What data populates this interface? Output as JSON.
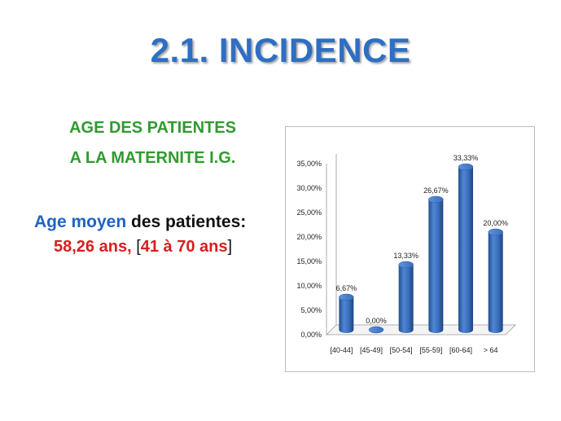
{
  "slide": {
    "title": "2.1. INCIDENCE",
    "subtitle_line1": "AGE DES PATIENTES",
    "subtitle_line2": "A LA MATERNITE I.G.",
    "mean_label_a": "Age moyen",
    "mean_label_b": " des patientes:",
    "mean_value": "58,26 ans,",
    "range_open": "[",
    "range_value": "41 à 70 ans",
    "range_close": "]",
    "colors": {
      "title": "#2e6fc4",
      "subtitle": "#2f9b2f",
      "highlight": "#d81e1e",
      "keyword": "#1f63c0",
      "bar": "#3a6fbf"
    }
  },
  "chart_data": {
    "type": "bar",
    "categories": [
      "[40-44]",
      "[45-49]",
      "[50-54]",
      "[55-59]",
      "[60-64]",
      "> 64"
    ],
    "values": [
      6.67,
      0.0,
      13.33,
      26.67,
      33.33,
      20.0
    ],
    "data_labels": [
      "6,67%",
      "0,00%",
      "13,33%",
      "26,67%",
      "33,33%",
      "20,00%"
    ],
    "y_ticks": [
      "0,00%",
      "5,00%",
      "10,00%",
      "15,00%",
      "20,00%",
      "25,00%",
      "30,00%",
      "35,00%"
    ],
    "ylim": [
      0,
      35
    ],
    "title": "",
    "xlabel": "",
    "ylabel": "",
    "grid": false,
    "style": "3d-cylinder"
  }
}
